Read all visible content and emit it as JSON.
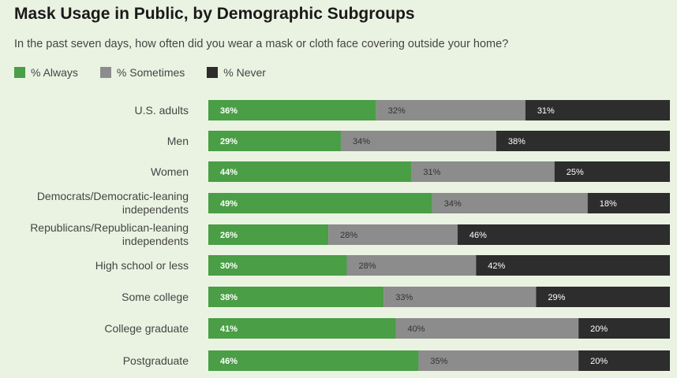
{
  "chart_data": {
    "type": "bar",
    "orientation": "horizontal",
    "stacked": true,
    "title": "Mask Usage in Public, by Demographic Subgroups",
    "subtitle": "In the past seven days, how often did you wear a mask or cloth face covering outside your home?",
    "categories": [
      [
        "U.S. adults"
      ],
      [
        "Men"
      ],
      [
        "Women"
      ],
      [
        "Democrats/Democratic-leaning",
        "independents"
      ],
      [
        "Republicans/Republican-leaning",
        "independents"
      ],
      [
        "High school or less"
      ],
      [
        "Some college"
      ],
      [
        "College graduate"
      ],
      [
        "Postgraduate"
      ]
    ],
    "series": [
      {
        "name": "% Always",
        "color": "#4a9e45",
        "label_color": "#ffffff",
        "values": [
          36,
          29,
          44,
          49,
          26,
          30,
          38,
          41,
          46
        ]
      },
      {
        "name": "% Sometimes",
        "color": "#8c8c8c",
        "label_color": "#333333",
        "values": [
          32,
          34,
          31,
          34,
          28,
          28,
          33,
          40,
          35
        ]
      },
      {
        "name": "% Never",
        "color": "#2d2d2d",
        "label_color": "#ffffff",
        "values": [
          31,
          38,
          25,
          18,
          46,
          42,
          29,
          20,
          20
        ]
      }
    ],
    "value_suffix": "%",
    "xlim": [
      0,
      100
    ]
  }
}
